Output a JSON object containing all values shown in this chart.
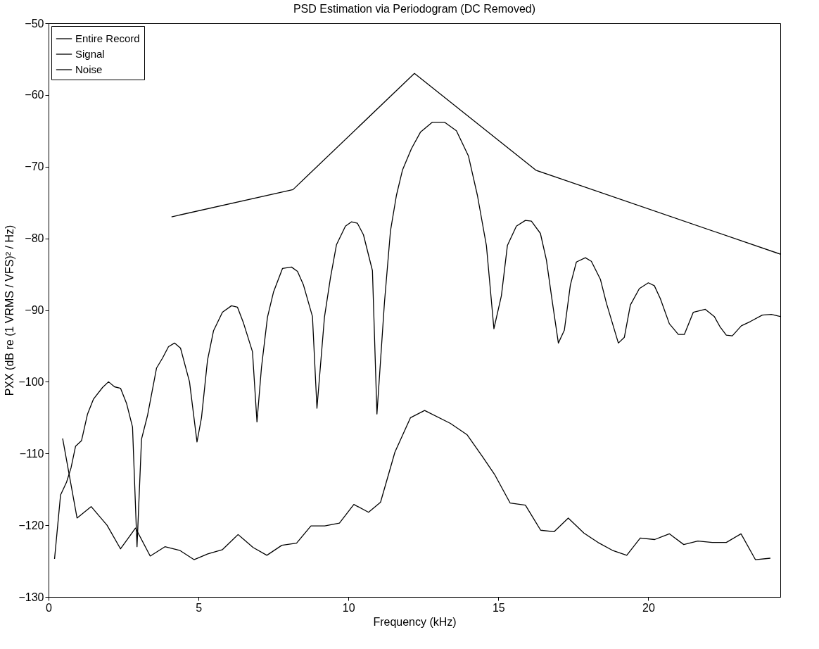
{
  "chart_data": {
    "type": "line",
    "title": "PSD Estimation via Periodogram (DC Removed)",
    "xlabel": "Frequency (kHz)",
    "ylabel": "PXX (dB re (1 VRMS / VFS)² / Hz)",
    "xlim": [
      0,
      24.4
    ],
    "xticks": [
      0,
      5,
      10,
      15,
      20
    ],
    "ylim": [
      -130,
      -50
    ],
    "yticks": [
      -130,
      -120,
      -110,
      -100,
      -90,
      -80,
      -70,
      -60,
      -50
    ],
    "grid": false,
    "legend": "top left",
    "line_style": "solid",
    "marker": "none",
    "series": [
      {
        "name": "Entire Record",
        "color": "#000000",
        "x": [
          4.1,
          8.15,
          12.2,
          16.25,
          24.4
        ],
        "values": [
          -77,
          -73.2,
          -57,
          -70.5,
          -82.2
        ]
      },
      {
        "name": "Signal",
        "color": "#000000",
        "x": [
          0.2,
          0.4,
          0.6,
          0.75,
          0.9,
          1.1,
          1.3,
          1.5,
          1.8,
          2.0,
          2.2,
          2.4,
          2.6,
          2.8,
          2.95,
          3.1,
          3.3,
          3.6,
          3.8,
          4.0,
          4.2,
          4.4,
          4.7,
          4.95,
          5.1,
          5.3,
          5.5,
          5.8,
          6.1,
          6.3,
          6.5,
          6.8,
          6.95,
          7.1,
          7.3,
          7.5,
          7.8,
          8.1,
          8.3,
          8.5,
          8.8,
          8.95,
          9.2,
          9.4,
          9.6,
          9.9,
          10.1,
          10.3,
          10.5,
          10.8,
          10.95,
          11.2,
          11.4,
          11.6,
          11.8,
          12.1,
          12.4,
          12.8,
          13.2,
          13.6,
          14.0,
          14.3,
          14.6,
          14.85,
          15.1,
          15.3,
          15.6,
          15.9,
          16.1,
          16.4,
          16.6,
          16.8,
          17.0,
          17.2,
          17.4,
          17.6,
          17.9,
          18.1,
          18.4,
          18.6,
          19.0,
          19.2,
          19.4,
          19.7,
          20.0,
          20.2,
          20.4,
          20.7,
          21.0,
          21.2,
          21.5,
          21.9,
          22.2,
          22.4,
          22.6,
          22.8,
          23.1,
          23.4,
          23.8,
          24.1,
          24.4
        ],
        "values": [
          -124.7,
          -115.8,
          -114,
          -112,
          -109,
          -108.2,
          -104.5,
          -102.4,
          -100.8,
          -100,
          -100.7,
          -100.9,
          -103,
          -106.3,
          -123,
          -108,
          -104.7,
          -98.1,
          -96.7,
          -95.1,
          -94.6,
          -95.3,
          -100,
          -108.4,
          -105,
          -97,
          -92.9,
          -90.3,
          -89.4,
          -89.6,
          -91.8,
          -95.8,
          -105.6,
          -98,
          -91,
          -87.5,
          -84.2,
          -84,
          -84.6,
          -86.5,
          -90.9,
          -103.7,
          -91,
          -85.5,
          -80.9,
          -78.3,
          -77.7,
          -77.9,
          -79.5,
          -84.5,
          -104.5,
          -89,
          -79,
          -74,
          -70.5,
          -67.5,
          -65.2,
          -63.8,
          -63.8,
          -65,
          -68.5,
          -74,
          -81,
          -92.6,
          -88,
          -81,
          -78.3,
          -77.5,
          -77.6,
          -79.3,
          -83,
          -88.9,
          -94.6,
          -92.8,
          -86.5,
          -83.3,
          -82.7,
          -83.2,
          -85.7,
          -89,
          -94.6,
          -93.8,
          -89.3,
          -87,
          -86.2,
          -86.6,
          -88.4,
          -91.9,
          -93.4,
          -93.4,
          -90.3,
          -89.9,
          -90.9,
          -92.4,
          -93.5,
          -93.6,
          -92.2,
          -91.6,
          -90.7,
          -90.6,
          -90.9
        ]
      },
      {
        "name": "Noise",
        "color": "#000000",
        "x": [
          0.47,
          0.95,
          1.42,
          1.95,
          2.4,
          2.9,
          3.39,
          3.88,
          4.37,
          4.85,
          5.31,
          5.8,
          6.32,
          6.82,
          7.28,
          7.78,
          8.27,
          8.75,
          9.21,
          9.7,
          10.18,
          10.67,
          11.07,
          11.55,
          12.07,
          12.54,
          13.4,
          13.96,
          14.48,
          14.87,
          15.39,
          15.9,
          16.41,
          16.86,
          17.33,
          17.85,
          18.32,
          18.8,
          19.28,
          19.73,
          20.21,
          20.7,
          21.18,
          21.65,
          22.13,
          22.6,
          23.09,
          23.57,
          24.07
        ],
        "values": [
          -107.9,
          -119,
          -117.4,
          -120,
          -123.3,
          -120.4,
          -124.3,
          -123,
          -123.5,
          -124.8,
          -124,
          -123.4,
          -121.3,
          -123.1,
          -124.2,
          -122.8,
          -122.5,
          -120.1,
          -120.1,
          -119.7,
          -117.1,
          -118.2,
          -116.8,
          -109.8,
          -105,
          -104,
          -105.8,
          -107.4,
          -110.5,
          -112.9,
          -116.9,
          -117.2,
          -120.7,
          -120.9,
          -119,
          -121.1,
          -122.4,
          -123.5,
          -124.2,
          -121.8,
          -122,
          -121.2,
          -122.7,
          -122.2,
          -122.4,
          -122.4,
          -121.2,
          -124.8,
          -124.6
        ]
      }
    ]
  }
}
